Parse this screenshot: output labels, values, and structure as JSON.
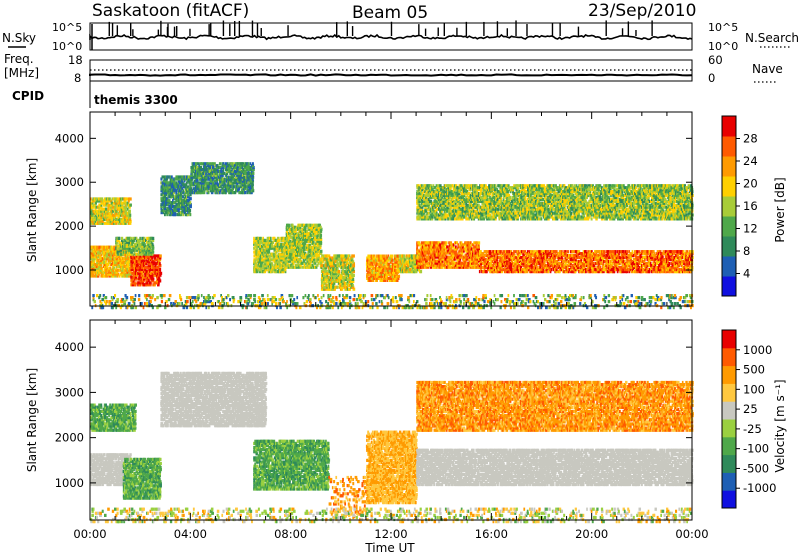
{
  "header": {
    "station": "Saskatoon (fitACF)",
    "beam": "Beam 05",
    "date": "23/Sep/2010"
  },
  "strip_panels": {
    "nsky": {
      "label": "N.Sky",
      "ticks": [
        "10^5",
        "10^0"
      ]
    },
    "nsearch": {
      "label": "N.Search",
      "ticks": [
        "10^5",
        "10^0"
      ]
    },
    "freq": {
      "label_line1": "Freq.",
      "label_line2": "[MHz]",
      "ticks": [
        "18",
        "8"
      ]
    },
    "nave": {
      "label": "Nave",
      "ticks": [
        "60",
        "0"
      ]
    },
    "cpid": {
      "label": "CPID",
      "value": "themis 3300"
    }
  },
  "colors": {
    "power": [
      "#1010e0",
      "#1e5fb4",
      "#2f8a5a",
      "#4fa84a",
      "#a8cc38",
      "#ffd000",
      "#ff9a00",
      "#ff5a00",
      "#e80000"
    ],
    "velocity": [
      "#e80000",
      "#ff5a00",
      "#ff9a00",
      "#ffc840",
      "#c8c8c0",
      "#9ad040",
      "#4fa84a",
      "#2f8a5a",
      "#1e5fb4",
      "#1010e0"
    ]
  },
  "chart_data": [
    {
      "type": "heatmap",
      "panel": "power",
      "ylabel": "Slant Range [km]",
      "yticks": [
        "1000",
        "2000",
        "3000",
        "4000"
      ],
      "ylim": [
        180,
        4600
      ],
      "xlim": [
        0,
        24
      ],
      "xticks": [
        "00:00",
        "04:00",
        "08:00",
        "12:00",
        "16:00",
        "20:00",
        "00:00"
      ],
      "colorbar": {
        "label": "Power [dB]",
        "ticks": [
          "4",
          "8",
          "12",
          "16",
          "20",
          "24",
          "28"
        ],
        "range": [
          0,
          30
        ]
      },
      "regions": [
        {
          "t": [
            0.0,
            1.6
          ],
          "r": [
            900,
            1600
          ],
          "v": [
            14,
            24
          ]
        },
        {
          "t": [
            1.6,
            2.8
          ],
          "r": [
            700,
            1400
          ],
          "v": [
            22,
            30
          ]
        },
        {
          "t": [
            0.0,
            1.6
          ],
          "r": [
            2100,
            2700
          ],
          "v": [
            12,
            22
          ]
        },
        {
          "t": [
            1.0,
            2.5
          ],
          "r": [
            1400,
            1800
          ],
          "v": [
            8,
            18
          ]
        },
        {
          "t": [
            2.8,
            4.0
          ],
          "r": [
            2300,
            3200
          ],
          "v": [
            4,
            14
          ]
        },
        {
          "t": [
            4.0,
            6.5
          ],
          "r": [
            2800,
            3500
          ],
          "v": [
            4,
            14
          ]
        },
        {
          "t": [
            6.5,
            7.8
          ],
          "r": [
            1000,
            1800
          ],
          "v": [
            10,
            20
          ]
        },
        {
          "t": [
            7.8,
            9.2
          ],
          "r": [
            1100,
            2100
          ],
          "v": [
            10,
            20
          ]
        },
        {
          "t": [
            9.2,
            10.5
          ],
          "r": [
            600,
            1400
          ],
          "v": [
            10,
            22
          ]
        },
        {
          "t": [
            11.0,
            12.3
          ],
          "r": [
            800,
            1400
          ],
          "v": [
            16,
            26
          ]
        },
        {
          "t": [
            12.3,
            13.2
          ],
          "r": [
            1000,
            1400
          ],
          "v": [
            12,
            22
          ]
        },
        {
          "t": [
            13.0,
            15.5
          ],
          "r": [
            1100,
            1700
          ],
          "v": [
            18,
            28
          ]
        },
        {
          "t": [
            15.5,
            24.0
          ],
          "r": [
            1000,
            1500
          ],
          "v": [
            18,
            30
          ]
        },
        {
          "t": [
            13.0,
            24.0
          ],
          "r": [
            2200,
            3000
          ],
          "v": [
            8,
            20
          ]
        },
        {
          "t": [
            0.0,
            24.0
          ],
          "r": [
            180,
            500
          ],
          "v": [
            4,
            24
          ]
        }
      ]
    },
    {
      "type": "heatmap",
      "panel": "velocity",
      "ylabel": "Slant Range [km]",
      "yticks": [
        "1000",
        "2000",
        "3000",
        "4000"
      ],
      "ylim": [
        180,
        4600
      ],
      "xlim": [
        0,
        24
      ],
      "xticks": [
        "00:00",
        "04:00",
        "08:00",
        "12:00",
        "16:00",
        "20:00",
        "00:00"
      ],
      "xlabel": "Time UT",
      "colorbar": {
        "label": "Velocity [m s⁻¹]",
        "ticks": [
          "1000",
          "500",
          "100",
          "25",
          "-25",
          "-100",
          "-500",
          "-1000"
        ]
      },
      "regions": [
        {
          "t": [
            0.0,
            1.6
          ],
          "r": [
            1000,
            1700
          ],
          "v": [
            4,
            4
          ]
        },
        {
          "t": [
            1.3,
            2.8
          ],
          "r": [
            700,
            1600
          ],
          "v": [
            5,
            7
          ]
        },
        {
          "t": [
            0.0,
            1.8
          ],
          "r": [
            2200,
            2800
          ],
          "v": [
            5,
            7
          ]
        },
        {
          "t": [
            2.8,
            7.0
          ],
          "r": [
            2300,
            3500
          ],
          "v": [
            4,
            4
          ]
        },
        {
          "t": [
            6.5,
            9.5
          ],
          "r": [
            900,
            2000
          ],
          "v": [
            5,
            7
          ]
        },
        {
          "t": [
            9.5,
            11.0
          ],
          "r": [
            300,
            1200
          ],
          "v": [
            1,
            3
          ]
        },
        {
          "t": [
            11.0,
            13.0
          ],
          "r": [
            600,
            2200
          ],
          "v": [
            2,
            3
          ]
        },
        {
          "t": [
            13.0,
            24.0
          ],
          "r": [
            1000,
            1800
          ],
          "v": [
            4,
            4
          ]
        },
        {
          "t": [
            13.0,
            24.0
          ],
          "r": [
            2200,
            3300
          ],
          "v": [
            1,
            3
          ]
        },
        {
          "t": [
            0.0,
            24.0
          ],
          "r": [
            180,
            500
          ],
          "v": [
            2,
            6
          ]
        }
      ]
    }
  ]
}
